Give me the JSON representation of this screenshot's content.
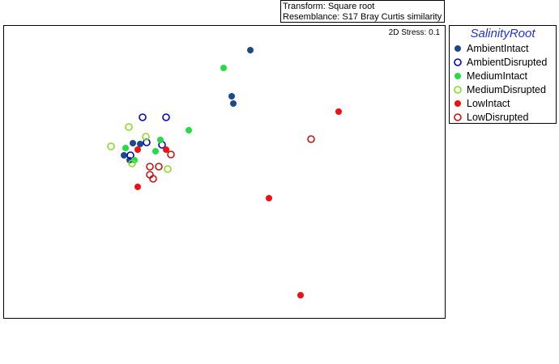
{
  "header": {
    "transform_line": "Transform: Square root",
    "resemblance_line": "Resemblance: S17 Bray Curtis similarity"
  },
  "plot": {
    "stress_label": "2D Stress: 0.1"
  },
  "legend": {
    "title": "SalinityRoot",
    "items": [
      {
        "label": "AmbientIntact",
        "color": "#1a4a8a",
        "filled": true
      },
      {
        "label": "AmbientDisrupted",
        "color": "#0000cc",
        "filled": false
      },
      {
        "label": "MediumIntact",
        "color": "#22dd44",
        "filled": true
      },
      {
        "label": "MediumDisrupted",
        "color": "#88dd22",
        "filled": false
      },
      {
        "label": "LowIntact",
        "color": "#ee1111",
        "filled": true
      },
      {
        "label": "LowDisrupted",
        "color": "#cc1111",
        "filled": false
      }
    ]
  },
  "chart_data": {
    "type": "scatter",
    "title": "",
    "xlabel": "",
    "ylabel": "",
    "xlim": [
      0,
      545
    ],
    "ylim": [
      0,
      362
    ],
    "axes_shown": false,
    "grid": false,
    "legend_position": "right",
    "series": [
      {
        "name": "AmbientIntact",
        "points": [
          [
            304,
            30
          ],
          [
            281,
            87
          ],
          [
            283,
            96
          ],
          [
            159,
            145
          ],
          [
            168,
            146
          ],
          [
            148,
            160
          ],
          [
            155,
            166
          ]
        ]
      },
      {
        "name": "AmbientDisrupted",
        "points": [
          [
            171,
            113
          ],
          [
            200,
            113
          ],
          [
            176,
            144
          ],
          [
            195,
            147
          ],
          [
            156,
            160
          ]
        ]
      },
      {
        "name": "MediumIntact",
        "points": [
          [
            271,
            52
          ],
          [
            228,
            129
          ],
          [
            193,
            141
          ],
          [
            150,
            151
          ],
          [
            187,
            155
          ],
          [
            161,
            166
          ]
        ]
      },
      {
        "name": "MediumDisrupted",
        "points": [
          [
            154,
            125
          ],
          [
            132,
            149
          ],
          [
            175,
            137
          ],
          [
            158,
            170
          ],
          [
            202,
            177
          ]
        ]
      },
      {
        "name": "LowIntact",
        "points": [
          [
            413,
            106
          ],
          [
            165,
            153
          ],
          [
            200,
            153
          ],
          [
            327,
            213
          ],
          [
            165,
            199
          ],
          [
            366,
            333
          ]
        ]
      },
      {
        "name": "LowDisrupted",
        "points": [
          [
            379,
            140
          ],
          [
            206,
            159
          ],
          [
            180,
            174
          ],
          [
            191,
            174
          ],
          [
            180,
            184
          ],
          [
            184,
            189
          ]
        ]
      }
    ]
  }
}
